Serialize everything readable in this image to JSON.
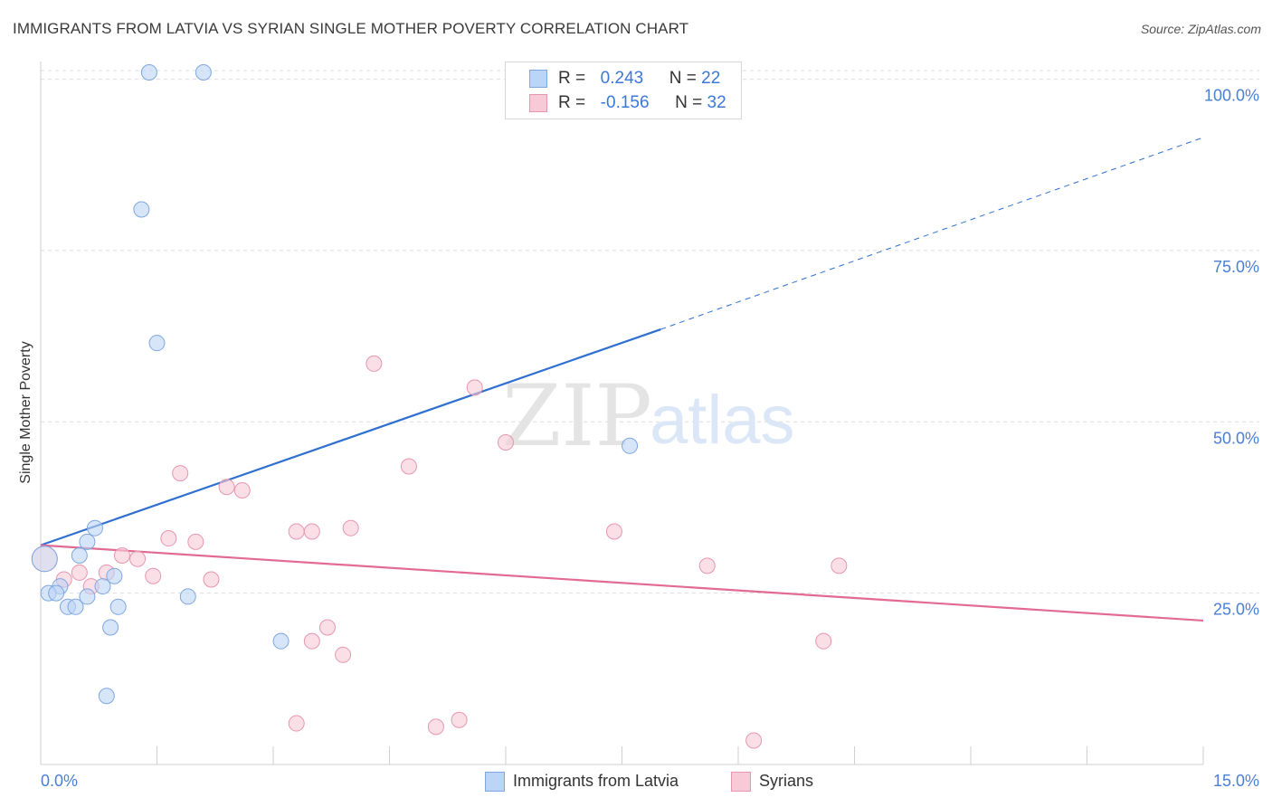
{
  "title": "IMMIGRANTS FROM LATVIA VS SYRIAN SINGLE MOTHER POVERTY CORRELATION CHART",
  "source": "Source: ZipAtlas.com",
  "watermark": {
    "zip": "ZIP",
    "atlas": "atlas"
  },
  "legend": {
    "rows": [
      {
        "r_label": "R =",
        "r_value": "0.243",
        "n_label": "N =",
        "n_value": "22",
        "color": "#a9c8f2"
      },
      {
        "r_label": "R =",
        "r_value": "-0.156",
        "n_label": "N =",
        "n_value": "32",
        "color": "#f5b8cb"
      }
    ]
  },
  "colors": {
    "blue_fill": "#bcd4f5",
    "blue_stroke": "#7ea7e0",
    "blue_line": "#2f6fd0",
    "pink_fill": "#f8c9d7",
    "pink_stroke": "#e796b0",
    "pink_line": "#e26a93",
    "tick_text": "#4a7fd4",
    "grid": "#dcdcdc"
  },
  "chart_data": {
    "type": "scatter",
    "title": "IMMIGRANTS FROM LATVIA VS SYRIAN SINGLE MOTHER POVERTY CORRELATION CHART",
    "xlabel": "",
    "ylabel": "Single Mother Poverty",
    "xlim": [
      0,
      15
    ],
    "ylim": [
      0,
      101
    ],
    "x_tick_labels": [
      "0.0%",
      "15.0%"
    ],
    "y_tick_labels": [
      "100.0%",
      "75.0%",
      "50.0%",
      "25.0%"
    ],
    "y_ticks": [
      100,
      75,
      50,
      25
    ],
    "grid": true,
    "legend_position": "top-center",
    "series": [
      {
        "name": "Immigrants from Latvia",
        "color": "#a9c8f2",
        "points": [
          {
            "x": 1.4,
            "y": 101
          },
          {
            "x": 2.1,
            "y": 101
          },
          {
            "x": 1.3,
            "y": 81
          },
          {
            "x": 1.5,
            "y": 61.5
          },
          {
            "x": 7.6,
            "y": 46.5
          },
          {
            "x": 0.7,
            "y": 34.5
          },
          {
            "x": 0.6,
            "y": 32.5
          },
          {
            "x": 0.5,
            "y": 30.5
          },
          {
            "x": 0.95,
            "y": 27.5
          },
          {
            "x": 0.8,
            "y": 26
          },
          {
            "x": 0.25,
            "y": 26
          },
          {
            "x": 0.1,
            "y": 25
          },
          {
            "x": 0.2,
            "y": 25
          },
          {
            "x": 0.6,
            "y": 24.5
          },
          {
            "x": 1.9,
            "y": 24.5
          },
          {
            "x": 0.35,
            "y": 23
          },
          {
            "x": 0.45,
            "y": 23
          },
          {
            "x": 1.0,
            "y": 23
          },
          {
            "x": 0.9,
            "y": 20
          },
          {
            "x": 3.1,
            "y": 18
          },
          {
            "x": 0.85,
            "y": 10
          },
          {
            "x": 0.05,
            "y": 30
          }
        ],
        "trend": {
          "x": [
            0,
            8.0
          ],
          "y": [
            32,
            63.5
          ],
          "dashed_to": {
            "x": 15,
            "y": 91.5
          }
        }
      },
      {
        "name": "Syrians",
        "color": "#f5b8cb",
        "points": [
          {
            "x": 4.3,
            "y": 58.5
          },
          {
            "x": 5.6,
            "y": 55
          },
          {
            "x": 6.0,
            "y": 47
          },
          {
            "x": 4.75,
            "y": 43.5
          },
          {
            "x": 1.8,
            "y": 42.5
          },
          {
            "x": 2.4,
            "y": 40.5
          },
          {
            "x": 2.6,
            "y": 40
          },
          {
            "x": 4.0,
            "y": 34.5
          },
          {
            "x": 3.3,
            "y": 34
          },
          {
            "x": 3.5,
            "y": 34
          },
          {
            "x": 7.4,
            "y": 34
          },
          {
            "x": 1.65,
            "y": 33
          },
          {
            "x": 2.0,
            "y": 32.5
          },
          {
            "x": 1.05,
            "y": 30.5
          },
          {
            "x": 1.25,
            "y": 30
          },
          {
            "x": 8.6,
            "y": 29
          },
          {
            "x": 10.3,
            "y": 29
          },
          {
            "x": 0.5,
            "y": 28
          },
          {
            "x": 0.85,
            "y": 28
          },
          {
            "x": 0.3,
            "y": 27
          },
          {
            "x": 1.45,
            "y": 27.5
          },
          {
            "x": 2.2,
            "y": 27
          },
          {
            "x": 0.65,
            "y": 26
          },
          {
            "x": 0.05,
            "y": 30
          },
          {
            "x": 3.7,
            "y": 20
          },
          {
            "x": 3.5,
            "y": 18
          },
          {
            "x": 3.9,
            "y": 16
          },
          {
            "x": 10.1,
            "y": 18
          },
          {
            "x": 3.3,
            "y": 6
          },
          {
            "x": 5.1,
            "y": 5.5
          },
          {
            "x": 5.4,
            "y": 6.5
          },
          {
            "x": 9.2,
            "y": 3.5
          }
        ],
        "trend": {
          "x": [
            0,
            15
          ],
          "y": [
            32,
            21
          ]
        }
      }
    ]
  },
  "bottom_legend": [
    {
      "label": "Immigrants from Latvia"
    },
    {
      "label": "Syrians"
    }
  ]
}
